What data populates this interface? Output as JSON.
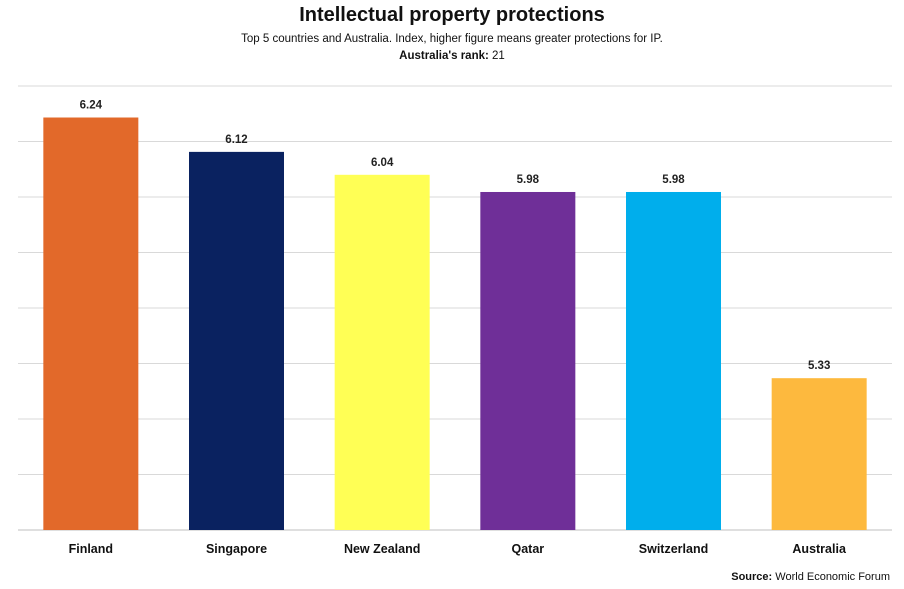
{
  "chart_data": {
    "type": "bar",
    "title": "Intellectual property protections",
    "subtitle": "Top 5 countries and Australia. Index, higher figure means greater protections for IP.",
    "rank_label": "Australia's rank:",
    "rank_value": "21",
    "source_label": "Source:",
    "source_value": "World Economic Forum",
    "categories": [
      "Finland",
      "Singapore",
      "New Zealand",
      "Qatar",
      "Switzerland",
      "Australia"
    ],
    "values": [
      6.24,
      6.12,
      6.04,
      5.98,
      5.98,
      5.33
    ],
    "value_labels": [
      "6.24",
      "6.12",
      "6.04",
      "5.98",
      "5.98",
      "5.33"
    ],
    "colors": [
      "#E2692A",
      "#0A2260",
      "#FFFF55",
      "#6F2F98",
      "#00AEEC",
      "#FDB93E"
    ],
    "ylim": [
      4.8,
      6.35
    ],
    "grid": true,
    "legend": "none"
  }
}
